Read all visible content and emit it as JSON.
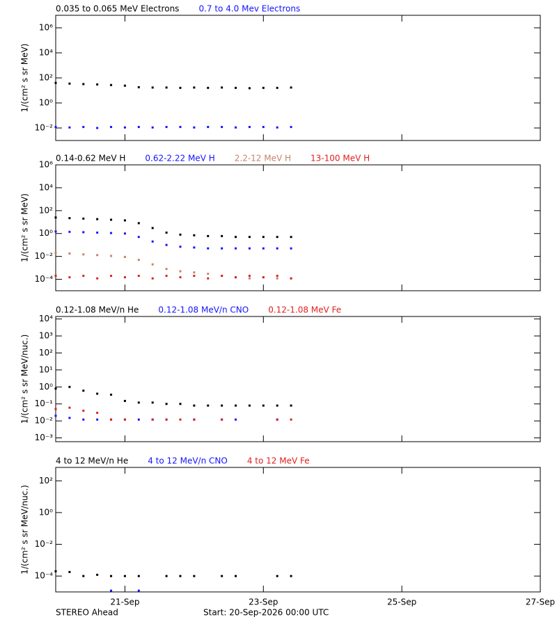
{
  "chart_data": [
    {
      "type": "scatter",
      "log_y": true,
      "xlim": [
        0,
        7
      ],
      "xticks": [
        1,
        3,
        5,
        7
      ],
      "ylim": [
        0.001,
        10000000
      ],
      "y_label": "1/(cm² s sr MeV)",
      "yticks": [
        {
          "value": 0.01,
          "label": "10⁻²"
        },
        {
          "value": 1,
          "label": "10⁰"
        },
        {
          "value": 100,
          "label": "10²"
        },
        {
          "value": 10000,
          "label": "10⁴"
        },
        {
          "value": 1000000,
          "label": "10⁶"
        }
      ],
      "x": [
        0,
        0.2,
        0.4,
        0.6,
        0.8,
        1.0,
        1.2,
        1.4,
        1.6,
        1.8,
        2.0,
        2.2,
        2.4,
        2.6,
        2.8,
        3.0,
        3.2,
        3.4
      ],
      "series": [
        {
          "name": "0.035 to 0.065 MeV Electrons",
          "color": "#000000",
          "values": [
            40,
            35,
            32,
            30,
            27,
            24,
            18,
            17,
            17,
            16,
            17,
            16,
            17,
            16,
            15,
            16,
            16,
            17
          ]
        },
        {
          "name": "0.7 to 4.0 Mev Electrons",
          "color": "#1414ff",
          "values": [
            0.012,
            0.011,
            0.012,
            0.01,
            0.012,
            0.011,
            0.012,
            0.011,
            0.012,
            0.012,
            0.011,
            0.012,
            0.012,
            0.011,
            0.012,
            0.012,
            0.011,
            0.012
          ]
        }
      ]
    },
    {
      "type": "scatter",
      "log_y": true,
      "xlim": [
        0,
        7
      ],
      "xticks": [
        1,
        3,
        5,
        7
      ],
      "ylim": [
        1e-05,
        1000000
      ],
      "y_label": "1/(cm² s sr MeV)",
      "yticks": [
        {
          "value": 0.0001,
          "label": "10⁻⁴"
        },
        {
          "value": 0.01,
          "label": "10⁻²"
        },
        {
          "value": 1,
          "label": "10⁰"
        },
        {
          "value": 100,
          "label": "10²"
        },
        {
          "value": 10000,
          "label": "10⁴"
        },
        {
          "value": 1000000,
          "label": "10⁶"
        }
      ],
      "x": [
        0,
        0.2,
        0.4,
        0.6,
        0.8,
        1.0,
        1.2,
        1.4,
        1.6,
        1.8,
        2.0,
        2.2,
        2.4,
        2.6,
        2.8,
        3.0,
        3.2,
        3.4
      ],
      "series": [
        {
          "name": "0.14-0.62 MeV H",
          "color": "#000000",
          "values": [
            25,
            22,
            20,
            18,
            16,
            14,
            8,
            3,
            1.2,
            0.8,
            0.7,
            0.6,
            0.6,
            0.5,
            0.5,
            0.5,
            0.5,
            0.5
          ]
        },
        {
          "name": "0.62-2.22 MeV H",
          "color": "#1414ff",
          "values": [
            1.5,
            1.4,
            1.3,
            1.2,
            1.1,
            1.0,
            0.5,
            0.2,
            0.1,
            0.07,
            0.06,
            0.05,
            0.05,
            0.05,
            0.05,
            0.05,
            0.05,
            0.05
          ]
        },
        {
          "name": "2.2-12 MeV H",
          "color": "#c8826a",
          "values": [
            0.02,
            0.018,
            0.015,
            0.013,
            0.011,
            0.009,
            0.005,
            0.002,
            0.0008,
            0.0005,
            0.0004,
            0.0003,
            0.0002,
            0.00015,
            0.00012,
            0.00015,
            0.00012,
            0.00012
          ]
        },
        {
          "name": "13-100 MeV H",
          "color": "#e0201e",
          "values": [
            0.0002,
            0.00015,
            0.0002,
            0.00012,
            0.0002,
            0.00015,
            0.0002,
            0.00012,
            0.0002,
            0.00015,
            0.0002,
            0.00012,
            0.0002,
            0.00015,
            0.0002,
            0.00015,
            0.0002,
            0.00012
          ]
        }
      ]
    },
    {
      "type": "scatter",
      "log_y": true,
      "xlim": [
        0,
        7
      ],
      "xticks": [
        1,
        3,
        5,
        7
      ],
      "ylim": [
        0.0006,
        14000
      ],
      "y_label": "1/(cm² s sr MeV/nuc.)",
      "yticks": [
        {
          "value": 0.001,
          "label": "10⁻³"
        },
        {
          "value": 0.01,
          "label": "10⁻²"
        },
        {
          "value": 0.1,
          "label": "10⁻¹"
        },
        {
          "value": 1,
          "label": "10⁰"
        },
        {
          "value": 10,
          "label": "10¹"
        },
        {
          "value": 100,
          "label": "10²"
        },
        {
          "value": 1000,
          "label": "10³"
        },
        {
          "value": 10000,
          "label": "10⁴"
        }
      ],
      "x": [
        0,
        0.2,
        0.4,
        0.6,
        0.8,
        1.0,
        1.2,
        1.4,
        1.6,
        1.8,
        2.0,
        2.2,
        2.4,
        2.6,
        2.8,
        3.0,
        3.2,
        3.4
      ],
      "series": [
        {
          "name": "0.12-1.08 MeV/n He",
          "color": "#000000",
          "values": [
            0.8,
            1.0,
            0.6,
            0.4,
            0.35,
            0.15,
            0.12,
            0.12,
            0.1,
            0.1,
            0.08,
            0.08,
            0.08,
            0.08,
            0.08,
            0.08,
            0.08,
            0.08
          ]
        },
        {
          "name": "0.12-1.08 MeV/n CNO",
          "color": "#1414ff",
          "values": [
            0.02,
            0.015,
            0.012,
            0.012,
            0.012,
            0.012,
            0.012,
            0.012,
            0.012,
            null,
            0.012,
            null,
            0.012,
            0.012,
            null,
            null,
            0.012,
            null
          ]
        },
        {
          "name": "0.12-1.08 MeV Fe",
          "color": "#e0201e",
          "values": [
            0.05,
            0.06,
            0.04,
            0.03,
            0.012,
            0.012,
            null,
            0.012,
            0.012,
            0.012,
            0.012,
            null,
            0.012,
            null,
            null,
            null,
            0.012,
            0.012
          ]
        }
      ]
    },
    {
      "type": "scatter",
      "log_y": true,
      "xlim": [
        0,
        7
      ],
      "xticks": [
        {
          "value": 1,
          "label": "21-Sep"
        },
        {
          "value": 3,
          "label": "23-Sep"
        },
        {
          "value": 5,
          "label": "25-Sep"
        },
        {
          "value": 7,
          "label": "27-Sep"
        }
      ],
      "ylim": [
        1e-05,
        700
      ],
      "y_label": "1/(cm² s sr MeV/nuc.)",
      "yticks": [
        {
          "value": 0.0001,
          "label": "10⁻⁴"
        },
        {
          "value": 0.01,
          "label": "10⁻²"
        },
        {
          "value": 1,
          "label": "10⁰"
        },
        {
          "value": 100,
          "label": "10²"
        }
      ],
      "x": [
        0,
        0.2,
        0.4,
        0.6,
        0.8,
        1.0,
        1.2,
        1.4,
        1.6,
        1.8,
        2.0,
        2.2,
        2.4,
        2.6,
        2.8,
        3.0,
        3.2,
        3.4
      ],
      "series": [
        {
          "name": "4 to 12 MeV/n He",
          "color": "#000000",
          "values": [
            0.0002,
            0.00018,
            0.0001,
            0.00012,
            0.0001,
            0.0001,
            0.0001,
            null,
            0.0001,
            0.0001,
            0.0001,
            null,
            0.0001,
            0.0001,
            null,
            null,
            0.0001,
            0.0001
          ]
        },
        {
          "name": "4 to 12 MeV/n CNO",
          "color": "#1414ff",
          "values": [
            null,
            null,
            null,
            null,
            1.2e-05,
            null,
            1.2e-05,
            null,
            null,
            null,
            null,
            null,
            null,
            null,
            null,
            null,
            null,
            null
          ]
        },
        {
          "name": "4 to 12 MeV Fe",
          "color": "#e0201e",
          "values": [
            null,
            null,
            null,
            null,
            null,
            null,
            null,
            null,
            null,
            null,
            null,
            null,
            null,
            null,
            null,
            null,
            null,
            null
          ]
        }
      ]
    }
  ],
  "footer": {
    "mission": "STEREO Ahead",
    "start": "Start: 20-Sep-2026 00:00 UTC"
  }
}
